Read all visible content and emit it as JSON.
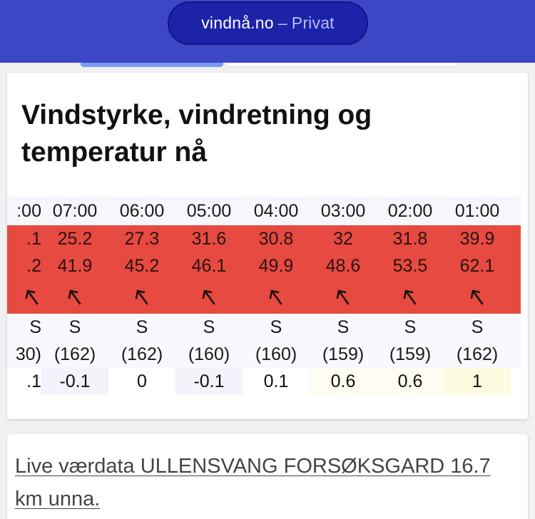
{
  "browser": {
    "domain": "vindnå.no",
    "separator": "–",
    "mode": "Privat"
  },
  "card": {
    "title": "Vindstyrke, vindretning og temperatur nå"
  },
  "table": {
    "times": [
      ":00",
      "07:00",
      "06:00",
      "05:00",
      "04:00",
      "03:00",
      "02:00",
      "01:00"
    ],
    "wind_speed": [
      ".1",
      "25.2",
      "27.3",
      "31.6",
      "30.8",
      "32",
      "31.8",
      "39.9"
    ],
    "wind_gust": [
      ".2",
      "41.9",
      "45.2",
      "46.1",
      "49.9",
      "48.6",
      "53.5",
      "62.1"
    ],
    "arrow_icons": [
      "arrow-up-left-icon",
      "arrow-up-left-icon",
      "arrow-up-left-icon",
      "arrow-up-left-icon",
      "arrow-up-left-icon",
      "arrow-up-left-icon",
      "arrow-up-left-icon",
      "arrow-up-left-icon"
    ],
    "direction": [
      "S",
      "S",
      "S",
      "S",
      "S",
      "S",
      "S",
      "S"
    ],
    "degrees": [
      "30)",
      "(162)",
      "(162)",
      "(160)",
      "(160)",
      "(159)",
      "(159)",
      "(162)"
    ],
    "temperature": [
      ".1",
      "-0.1",
      "0",
      "-0.1",
      "0.1",
      "0.6",
      "0.6",
      "1"
    ],
    "temperature_bg": [
      "#ffffff",
      "#f3f3fb",
      "#ffffff",
      "#f3f3fb",
      "#ffffff",
      "#fffdf2",
      "#fffdf2",
      "#fdfbe0"
    ]
  },
  "colors": {
    "browser_bar": "#3d46c4",
    "wind_band": "#e64a40"
  },
  "live_link": {
    "label": "Live værdata ULLENSVANG FORSØKSGARD 16.7 km unna."
  }
}
